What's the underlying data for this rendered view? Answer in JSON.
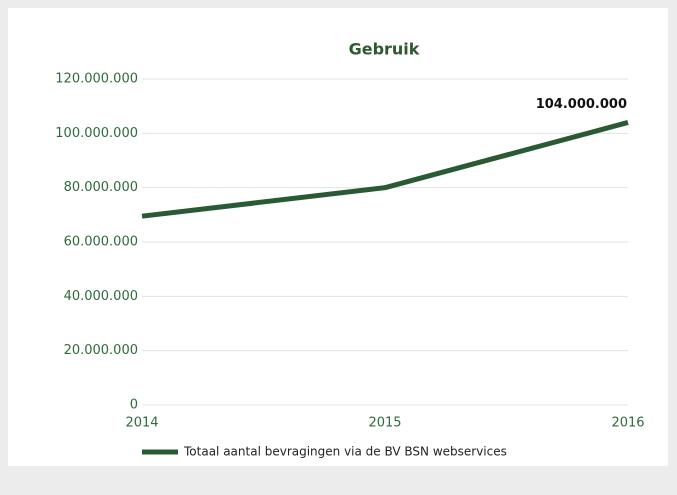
{
  "chart_data": {
    "type": "line",
    "title": "Gebruik",
    "categories": [
      "2014",
      "2015",
      "2016"
    ],
    "series": [
      {
        "name": "Totaal aantal bevragingen via de BV BSN webservices",
        "color": "#2a5a34",
        "values": [
          69500000,
          80000000,
          104000000
        ],
        "value_labels": [
          null,
          null,
          "104.000.000"
        ]
      }
    ],
    "ylim": [
      0,
      120000000
    ],
    "yticks": [
      0,
      {
        "value": 20000000,
        "label": "20.000.000"
      },
      {
        "value": 40000000,
        "label": "40.000.000"
      },
      {
        "value": 60000000,
        "label": "60.000.000"
      },
      {
        "value": 80000000,
        "label": "80.000.000"
      },
      {
        "value": 100000000,
        "label": "100.000.000"
      },
      {
        "value": 120000000,
        "label": "120.000.000"
      }
    ],
    "grid": true,
    "legend": "bottom"
  }
}
